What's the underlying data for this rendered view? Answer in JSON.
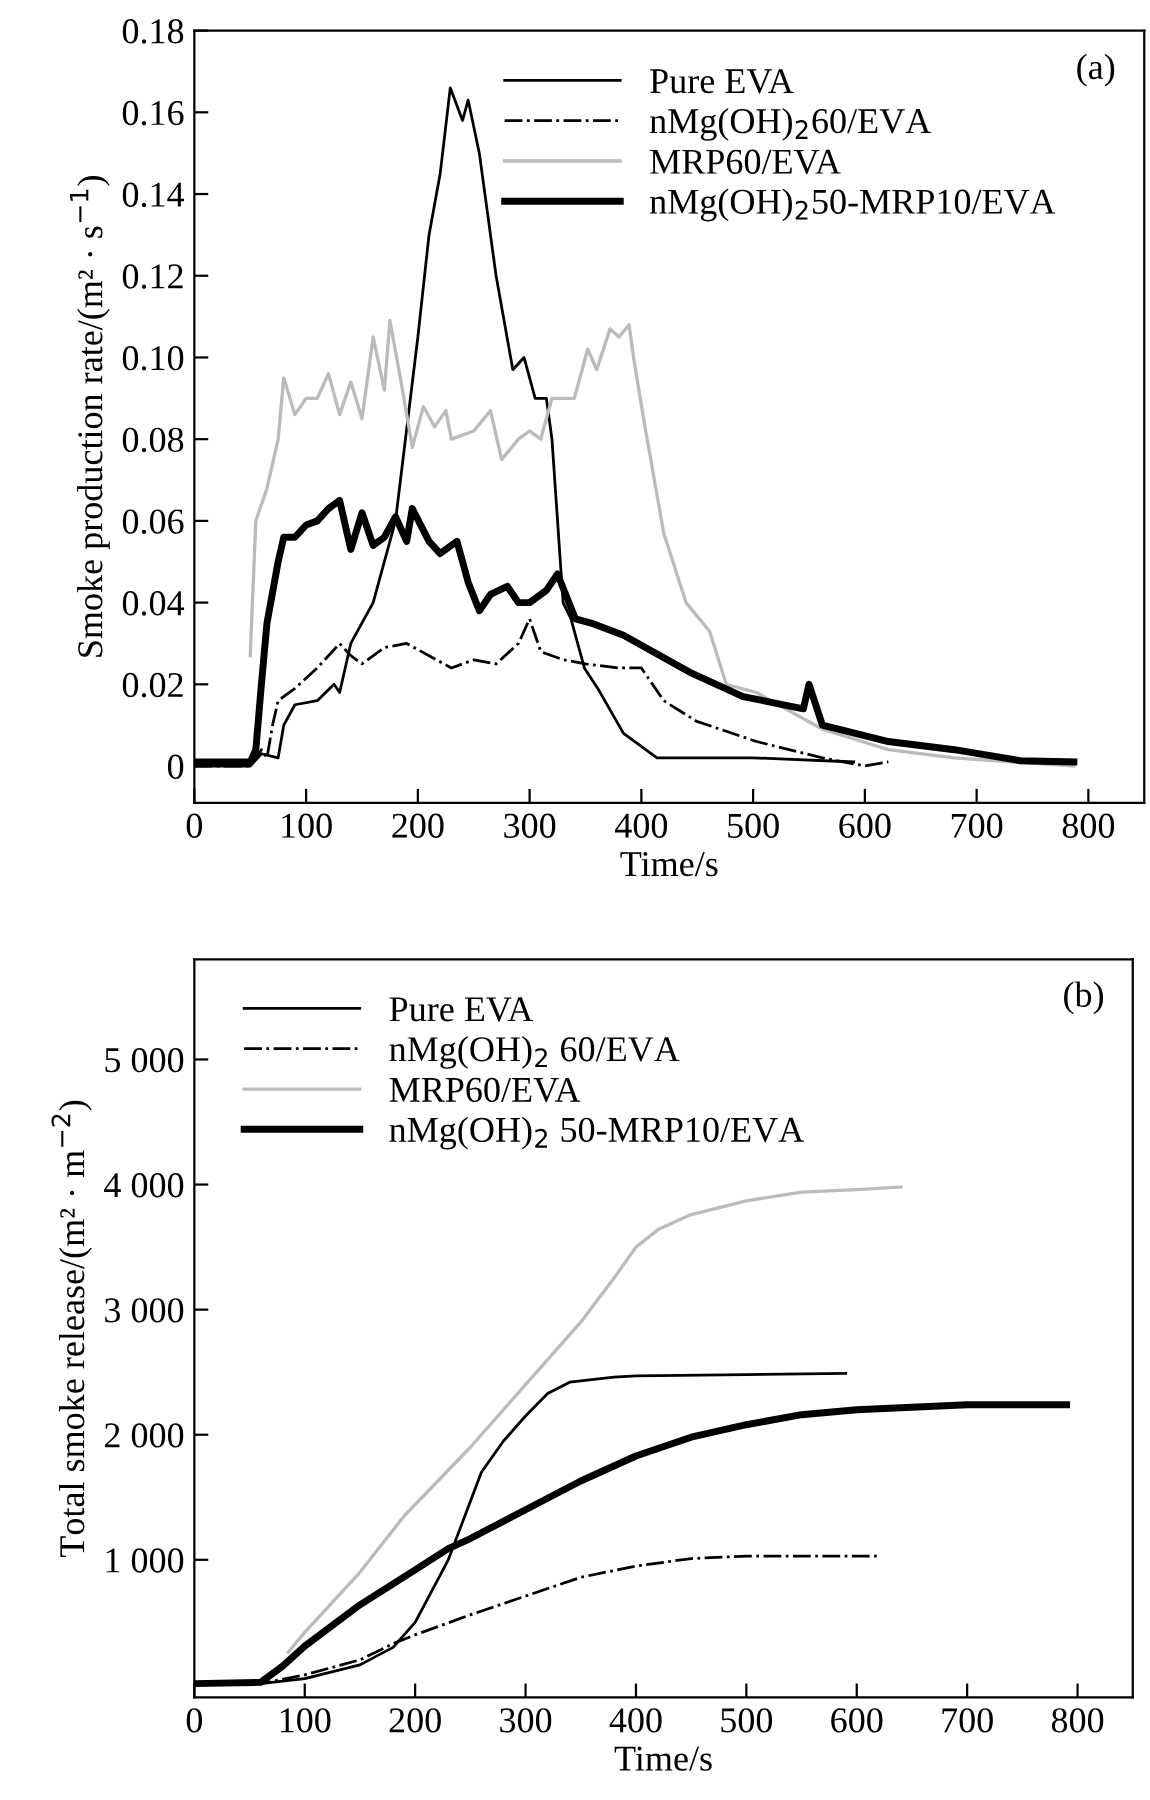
{
  "chart_data": [
    {
      "type": "line",
      "xlabel": "Time/s",
      "ylabel": "Smoke production rate/(m² · s$^{−1}$)",
      "annotations": [
        "(a)"
      ],
      "xlim": [
        0,
        850
      ],
      "ylim": [
        -0.009,
        0.18
      ],
      "xticks": [
        0,
        100,
        200,
        300,
        400,
        500,
        600,
        700,
        800
      ],
      "yticks": [
        0,
        0.02,
        0.04,
        0.06,
        0.08,
        {
          "value": 0.1,
          "label": "0.10"
        },
        0.12,
        0.14,
        0.16,
        0.18
      ],
      "grid": false,
      "legend": "top right",
      "marker": "none",
      "series": [
        {
          "name": "Pure EVA",
          "color": "#000000",
          "line_style": "solid",
          "x": [
            0,
            50,
            60,
            75,
            80,
            90,
            110,
            125,
            130,
            140,
            160,
            180,
            200,
            210,
            220,
            229,
            240,
            245,
            255,
            270,
            285,
            295,
            305,
            315,
            320,
            330,
            337,
            349,
            361,
            384,
            414,
            500,
            590
          ],
          "values": [
            0,
            0,
            0.003,
            0.002,
            0.01,
            0.015,
            0.016,
            0.02,
            0.018,
            0.03,
            0.04,
            0.06,
            0.105,
            0.13,
            0.145,
            0.166,
            0.158,
            0.163,
            0.15,
            0.12,
            0.097,
            0.1,
            0.09,
            0.09,
            0.08,
            0.04,
            0.036,
            0.024,
            0.019,
            0.008,
            0.002,
            0.002,
            0.001
          ]
        },
        {
          "name": "nMg(OH)$_{2}$60/EVA",
          "color": "#000000",
          "line_style": "dashdot",
          "x": [
            0,
            50,
            60,
            65,
            70,
            75,
            90,
            110,
            130,
            140,
            150,
            170,
            190,
            210,
            230,
            250,
            270,
            290,
            300,
            310,
            330,
            350,
            380,
            400,
            420,
            449,
            503,
            562,
            600,
            621
          ],
          "values": [
            0,
            0,
            0.004,
            0.002,
            0.01,
            0.016,
            0.019,
            0.024,
            0.03,
            0.027,
            0.025,
            0.029,
            0.03,
            0.027,
            0.024,
            0.026,
            0.025,
            0.03,
            0.036,
            0.028,
            0.026,
            0.025,
            0.024,
            0.024,
            0.016,
            0.011,
            0.006,
            0.002,
            0,
            0.001
          ]
        },
        {
          "name": "MRP60/EVA",
          "color": "#bbbbbb",
          "line_style": "solid",
          "x": [
            50,
            55,
            65,
            75,
            80,
            90,
            100,
            110,
            120,
            130,
            140,
            150,
            160,
            170,
            175,
            185,
            195,
            205,
            215,
            225,
            230,
            250,
            265,
            275,
            290,
            300,
            310,
            320,
            340,
            352,
            360,
            372,
            380,
            389,
            393,
            402,
            420,
            440,
            461,
            476,
            503,
            562,
            621,
            680,
            787
          ],
          "values": [
            0.027,
            0.06,
            0.068,
            0.08,
            0.095,
            0.086,
            0.09,
            0.09,
            0.096,
            0.086,
            0.094,
            0.085,
            0.105,
            0.092,
            0.109,
            0.094,
            0.078,
            0.088,
            0.083,
            0.087,
            0.08,
            0.082,
            0.087,
            0.075,
            0.08,
            0.082,
            0.08,
            0.09,
            0.09,
            0.102,
            0.097,
            0.107,
            0.105,
            0.108,
            0.1,
            0.085,
            0.057,
            0.04,
            0.033,
            0.02,
            0.018,
            0.009,
            0.004,
            0.002,
            0
          ]
        },
        {
          "name": "nMg(OH)$_{2}$50-MRP10/EVA",
          "color": "#000000",
          "line_style": "solid",
          "x": [
            0,
            50,
            55,
            60,
            65,
            75,
            80,
            90,
            100,
            110,
            120,
            130,
            140,
            150,
            160,
            170,
            180,
            190,
            195,
            210,
            220,
            235,
            245,
            255,
            265,
            280,
            290,
            300,
            315,
            325,
            341,
            355,
            384,
            443,
            491,
            545,
            550,
            562,
            621,
            680,
            739,
            787
          ],
          "values": [
            0.001,
            0.001,
            0.004,
            0.02,
            0.035,
            0.05,
            0.056,
            0.056,
            0.059,
            0.06,
            0.063,
            0.065,
            0.053,
            0.062,
            0.054,
            0.056,
            0.061,
            0.055,
            0.063,
            0.055,
            0.052,
            0.055,
            0.045,
            0.038,
            0.042,
            0.044,
            0.04,
            0.04,
            0.043,
            0.047,
            0.036,
            0.035,
            0.032,
            0.023,
            0.017,
            0.014,
            0.02,
            0.01,
            0.006,
            0.004,
            0.0013,
            0.001
          ]
        }
      ]
    },
    {
      "type": "line",
      "xlabel": "Time/s",
      "ylabel": "Total smoke release/(m² · m$^{−2}$)",
      "annotations": [
        "(b)"
      ],
      "xlim": [
        0,
        850
      ],
      "ylim": [
        -100,
        5800
      ],
      "xticks": [
        0,
        100,
        200,
        300,
        400,
        500,
        600,
        700,
        800
      ],
      "yticks": [
        {
          "value": 1000,
          "label": "1 000"
        },
        {
          "value": 2000,
          "label": "2 000"
        },
        {
          "value": 3000,
          "label": "3 000"
        },
        {
          "value": 4000,
          "label": "4 000"
        },
        {
          "value": 5000,
          "label": "5 000"
        }
      ],
      "grid": false,
      "legend": "top left",
      "marker": "none",
      "series": [
        {
          "name": "Pure EVA",
          "color": "#000000",
          "line_style": "solid",
          "x": [
            0,
            60,
            100,
            150,
            180,
            200,
            230,
            260,
            280,
            300,
            320,
            340,
            380,
            400,
            500,
            590
          ],
          "values": [
            10,
            10,
            50,
            160,
            300,
            500,
            1000,
            1700,
            1950,
            2150,
            2330,
            2420,
            2460,
            2470,
            2480,
            2490
          ]
        },
        {
          "name": "nMg(OH)$_{2}$ 60/EVA",
          "color": "#000000",
          "line_style": "dashdot",
          "x": [
            0,
            60,
            100,
            150,
            180,
            200,
            250,
            300,
            350,
            400,
            450,
            500,
            600,
            620
          ],
          "values": [
            10,
            10,
            80,
            200,
            330,
            400,
            560,
            710,
            860,
            950,
            1010,
            1030,
            1030,
            1030
          ]
        },
        {
          "name": "MRP60/EVA",
          "color": "#bbbbbb",
          "line_style": "solid",
          "x": [
            85,
            100,
            150,
            190,
            250,
            300,
            350,
            380,
            400,
            420,
            450,
            500,
            550,
            600,
            640
          ],
          "values": [
            260,
            420,
            900,
            1350,
            1900,
            2400,
            2900,
            3250,
            3500,
            3640,
            3760,
            3870,
            3940,
            3960,
            3980
          ]
        },
        {
          "name": "nMg(OH)$_{2}$ 50-MRP10/EVA",
          "color": "#000000",
          "line_style": "solid",
          "x": [
            0,
            60,
            80,
            100,
            150,
            200,
            230,
            250,
            300,
            350,
            400,
            450,
            500,
            550,
            600,
            650,
            700,
            790
          ],
          "values": [
            10,
            20,
            150,
            310,
            640,
            920,
            1090,
            1170,
            1400,
            1630,
            1830,
            1980,
            2080,
            2160,
            2200,
            2220,
            2240,
            2240
          ]
        }
      ]
    }
  ]
}
